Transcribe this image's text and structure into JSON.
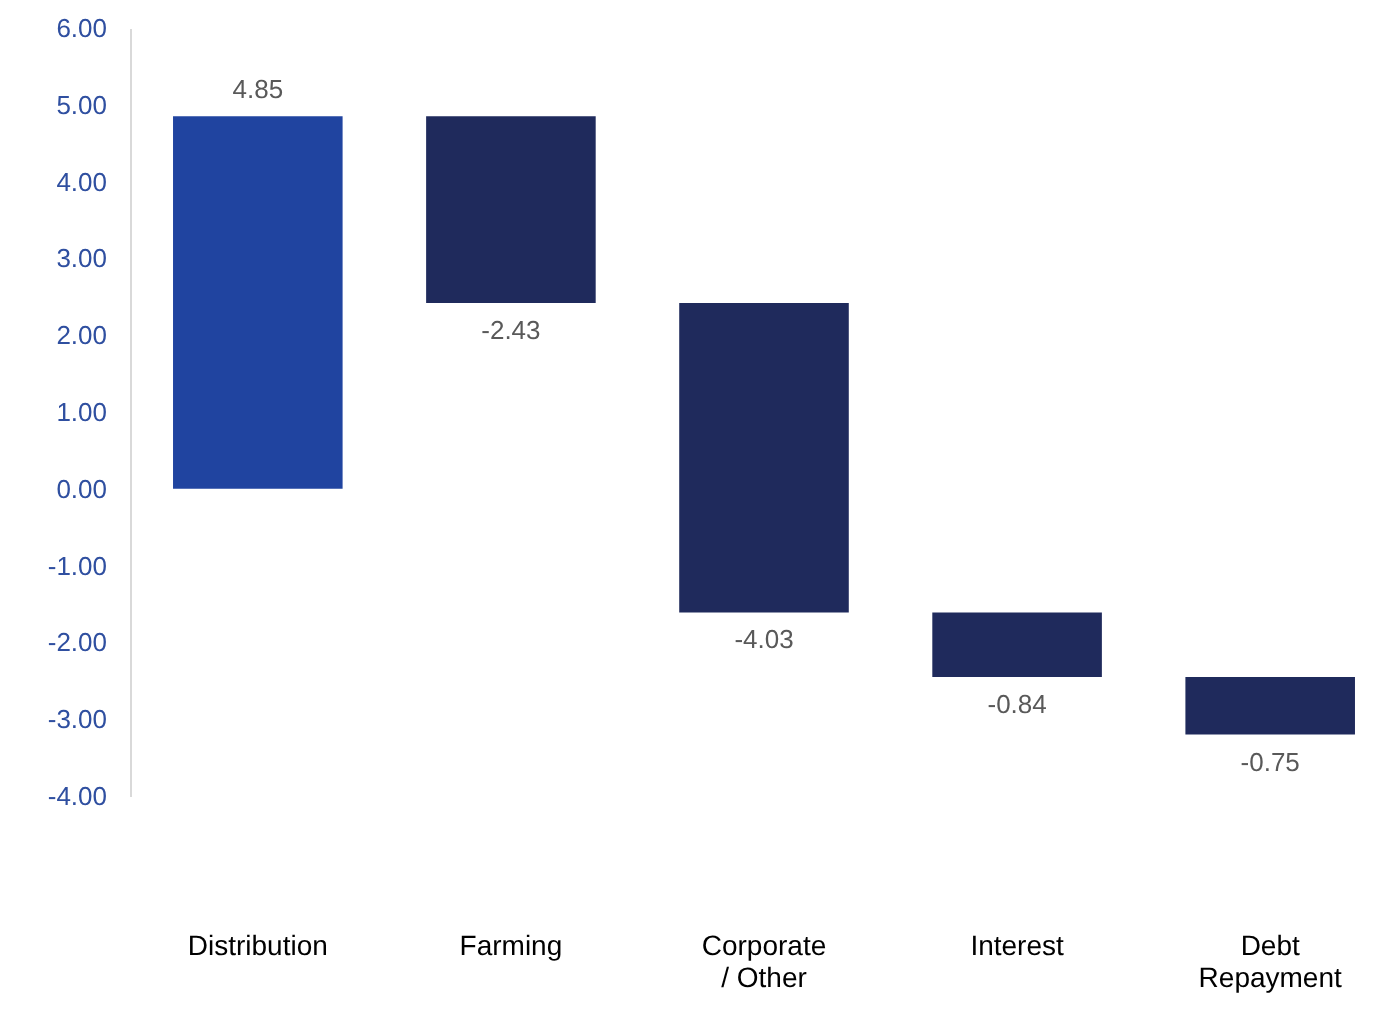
{
  "chart_data": {
    "type": "bar",
    "categories": [
      "Distribution",
      "Farming",
      "Corporate / Other",
      "Interest",
      "Debt Repayment"
    ],
    "values": [
      4.85,
      -2.43,
      -4.03,
      -0.84,
      -0.75
    ],
    "base": [
      0,
      4.85,
      2.42,
      -1.61,
      -2.45
    ],
    "colors": [
      "#2044a0",
      "#1f2a5c",
      "#1f2a5c",
      "#1f2a5c",
      "#1f2a5c"
    ],
    "ylim": [
      -4,
      6
    ],
    "yticks": [
      {
        "value": -4,
        "label": "-4.00"
      },
      {
        "value": -3,
        "label": "-3.00"
      },
      {
        "value": -2,
        "label": "-2.00"
      },
      {
        "value": -1,
        "label": "-1.00"
      },
      {
        "value": 0,
        "label": "0.00"
      },
      {
        "value": 1,
        "label": "1.00"
      },
      {
        "value": 2,
        "label": "2.00"
      },
      {
        "value": 3,
        "label": "3.00"
      },
      {
        "value": 4,
        "label": "4.00"
      },
      {
        "value": 5,
        "label": "5.00"
      },
      {
        "value": 6,
        "label": "6.00"
      }
    ],
    "data_labels": true,
    "grid": false
  }
}
